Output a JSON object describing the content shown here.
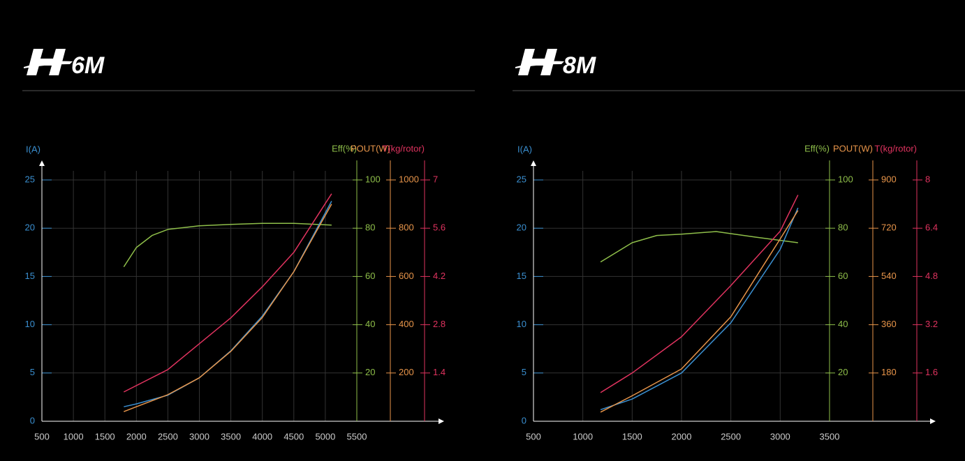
{
  "chart_data": [
    {
      "type": "line",
      "title": "6M",
      "xlim": [
        500,
        5500
      ],
      "xticks": [
        500,
        1000,
        1500,
        2000,
        2500,
        3000,
        3500,
        4000,
        4500,
        5000,
        5500
      ],
      "ylabel": "I(A)",
      "ylim": [
        0,
        25
      ],
      "yticks": [
        0,
        5,
        10,
        15,
        20,
        25
      ],
      "ycolor": "#3a8fd0",
      "y2label": "Eff(%)",
      "y2lim": [
        0,
        100
      ],
      "y2ticks": [
        20,
        40,
        60,
        80,
        100
      ],
      "y2color": "#8fbf4a",
      "y3label": "POUT(W)",
      "y3lim": [
        0,
        1000
      ],
      "y3ticks": [
        200,
        400,
        600,
        800,
        1000
      ],
      "y3color": "#e8954a",
      "y4label": "T(kg/rotor)",
      "y4lim": [
        0,
        7
      ],
      "y4ticks": [
        1.4,
        2.8,
        4.2,
        5.6,
        7
      ],
      "y4color": "#e0335f",
      "grid": true,
      "series": [
        {
          "axis": "y2",
          "color": "#8fbf4a",
          "x": [
            1800,
            2000,
            2250,
            2500,
            3000,
            3500,
            4000,
            4500,
            5100
          ],
          "values": [
            64,
            72,
            77,
            79.5,
            81,
            81.6,
            82,
            82,
            81.3
          ]
        },
        {
          "axis": "y",
          "color": "#3a8fd0",
          "x": [
            1800,
            2000,
            2500,
            3000,
            3500,
            4000,
            4500,
            5100
          ],
          "values": [
            1.5,
            1.8,
            2.7,
            4.5,
            7.3,
            10.9,
            15.5,
            22.8
          ]
        },
        {
          "axis": "y3",
          "color": "#e8954a",
          "x": [
            1800,
            2000,
            2500,
            3000,
            3500,
            4000,
            4500,
            5100
          ],
          "values": [
            40,
            60,
            110,
            180,
            290,
            430,
            620,
            900
          ]
        },
        {
          "axis": "y4",
          "color": "#e0335f",
          "x": [
            1800,
            2500,
            3000,
            3500,
            4000,
            4500,
            5100
          ],
          "values": [
            0.85,
            1.5,
            2.25,
            3.0,
            3.9,
            4.9,
            6.6
          ]
        }
      ]
    },
    {
      "type": "line",
      "title": "8M",
      "xlim": [
        500,
        3500
      ],
      "xticks": [
        500,
        1000,
        1500,
        2000,
        2500,
        3000,
        3500
      ],
      "ylabel": "I(A)",
      "ylim": [
        0,
        25
      ],
      "yticks": [
        0,
        5,
        10,
        15,
        20,
        25
      ],
      "ycolor": "#3a8fd0",
      "y2label": "Eff(%)",
      "y2lim": [
        0,
        100
      ],
      "y2ticks": [
        20,
        40,
        60,
        80,
        100
      ],
      "y2color": "#8fbf4a",
      "y3label": "POUT(W)",
      "y3lim": [
        0,
        900
      ],
      "y3ticks": [
        180,
        360,
        540,
        720,
        900
      ],
      "y3color": "#e8954a",
      "y4label": "T(kg/rotor)",
      "y4lim": [
        0,
        8
      ],
      "y4ticks": [
        1.6,
        3.2,
        4.8,
        6.4,
        8
      ],
      "y4color": "#e0335f",
      "grid": true,
      "series": [
        {
          "axis": "y2",
          "color": "#8fbf4a",
          "x": [
            1180,
            1500,
            1750,
            2000,
            2350,
            2750,
            3180
          ],
          "values": [
            66,
            74,
            77,
            77.5,
            78.6,
            76.3,
            74
          ]
        },
        {
          "axis": "y",
          "color": "#3a8fd0",
          "x": [
            1180,
            1500,
            2000,
            2500,
            3000,
            3180
          ],
          "values": [
            1.2,
            2.3,
            5,
            10.2,
            17.8,
            22.1
          ]
        },
        {
          "axis": "y3",
          "color": "#e8954a",
          "x": [
            1180,
            1500,
            2000,
            2500,
            3000,
            3180
          ],
          "values": [
            34,
            95,
            195,
            390,
            680,
            786
          ]
        },
        {
          "axis": "y4",
          "color": "#e0335f",
          "x": [
            1180,
            1500,
            2000,
            2500,
            3000,
            3180
          ],
          "values": [
            0.95,
            1.6,
            2.8,
            4.5,
            6.3,
            7.5
          ]
        }
      ]
    }
  ]
}
